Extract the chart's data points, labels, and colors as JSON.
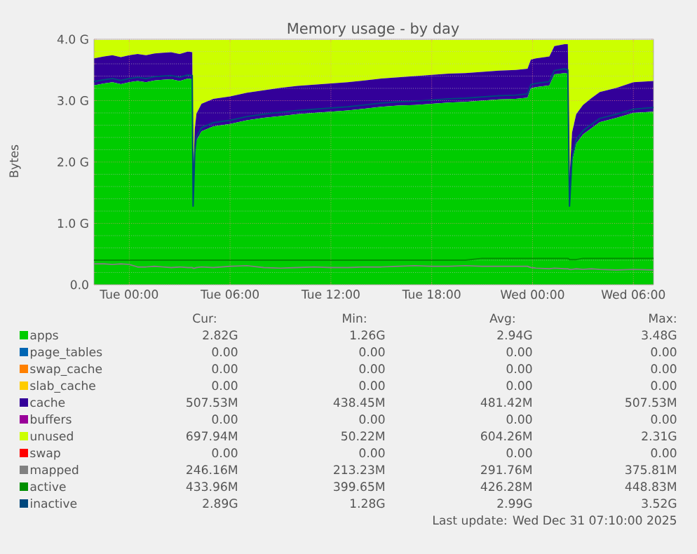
{
  "chart_data": {
    "type": "area",
    "title": "Memory usage - by day",
    "ylabel": "Bytes",
    "stacked": true,
    "grid": true,
    "legend": "bottom",
    "x": [
      "2025-12-29T21:54",
      "2025-12-29T22:30",
      "2025-12-29T23:00",
      "2025-12-29T23:30",
      "2025-12-30T00:00",
      "2025-12-30T00:30",
      "2025-12-30T01:00",
      "2025-12-30T01:30",
      "2025-12-30T02:00",
      "2025-12-30T02:30",
      "2025-12-30T03:00",
      "2025-12-30T03:30",
      "2025-12-30T03:45",
      "2025-12-30T03:48",
      "2025-12-30T03:54",
      "2025-12-30T04:00",
      "2025-12-30T04:18",
      "2025-12-30T05:00",
      "2025-12-30T06:00",
      "2025-12-30T07:00",
      "2025-12-30T08:00",
      "2025-12-30T09:00",
      "2025-12-30T10:00",
      "2025-12-30T11:00",
      "2025-12-30T12:00",
      "2025-12-30T13:00",
      "2025-12-30T14:00",
      "2025-12-30T15:00",
      "2025-12-30T16:00",
      "2025-12-30T17:00",
      "2025-12-30T18:00",
      "2025-12-30T19:00",
      "2025-12-30T20:00",
      "2025-12-30T21:00",
      "2025-12-30T22:00",
      "2025-12-30T23:00",
      "2025-12-30T23:42",
      "2025-12-30T23:54",
      "2025-12-31T00:12",
      "2025-12-31T01:00",
      "2025-12-31T01:18",
      "2025-12-31T01:54",
      "2025-12-31T02:06",
      "2025-12-31T02:12",
      "2025-12-31T02:21",
      "2025-12-31T02:36",
      "2025-12-31T03:00",
      "2025-12-31T03:30",
      "2025-12-31T04:00",
      "2025-12-31T05:00",
      "2025-12-31T06:00",
      "2025-12-31T07:12"
    ],
    "xlim": [
      "2025-12-29T21:54",
      "2025-12-31T07:12"
    ],
    "xticks": [
      {
        "value": "2025-12-30T00:00",
        "label": "Tue 00:00"
      },
      {
        "value": "2025-12-30T06:00",
        "label": "Tue 06:00"
      },
      {
        "value": "2025-12-30T12:00",
        "label": "Tue 12:00"
      },
      {
        "value": "2025-12-30T18:00",
        "label": "Tue 18:00"
      },
      {
        "value": "2025-12-31T00:00",
        "label": "Wed 00:00"
      },
      {
        "value": "2025-12-31T06:00",
        "label": "Wed 06:00"
      }
    ],
    "ylim": [
      0,
      4
    ],
    "yticks": [
      {
        "value": 0,
        "label": "0.0"
      },
      {
        "value": 1,
        "label": "1.0 G"
      },
      {
        "value": 2,
        "label": "2.0 G"
      },
      {
        "value": 3,
        "label": "3.0 G"
      },
      {
        "value": 4,
        "label": "4.0 G"
      }
    ],
    "series": [
      {
        "name": "apps",
        "color": "#00cc00",
        "values": [
          3.25,
          3.28,
          3.3,
          3.27,
          3.3,
          3.32,
          3.3,
          3.33,
          3.34,
          3.35,
          3.32,
          3.36,
          3.35,
          1.26,
          2.1,
          2.35,
          2.5,
          2.58,
          2.62,
          2.68,
          2.72,
          2.75,
          2.78,
          2.8,
          2.82,
          2.84,
          2.87,
          2.9,
          2.92,
          2.93,
          2.95,
          2.97,
          2.98,
          3.0,
          3.02,
          3.03,
          3.05,
          3.2,
          3.22,
          3.25,
          3.43,
          3.45,
          3.44,
          1.26,
          2.0,
          2.3,
          2.45,
          2.55,
          2.65,
          2.72,
          2.8,
          2.82
        ]
      },
      {
        "name": "page_tables",
        "color": "#0066b3",
        "values": [
          null,
          null,
          null,
          null,
          null,
          null,
          null,
          null,
          null,
          null,
          null,
          null,
          null,
          null,
          null,
          null,
          null,
          null,
          null,
          null,
          null,
          null,
          null,
          null,
          null,
          null,
          null,
          null,
          null,
          null,
          null,
          null,
          null,
          null,
          null,
          null,
          null,
          null,
          null,
          null,
          null,
          null,
          null,
          null,
          null,
          null,
          null,
          null,
          null,
          null,
          null,
          null
        ]
      },
      {
        "name": "swap_cache",
        "color": "#ff8000",
        "values": [
          null,
          null,
          null,
          null,
          null,
          null,
          null,
          null,
          null,
          null,
          null,
          null,
          null,
          null,
          null,
          null,
          null,
          null,
          null,
          null,
          null,
          null,
          null,
          null,
          null,
          null,
          null,
          null,
          null,
          null,
          null,
          null,
          null,
          null,
          null,
          null,
          null,
          null,
          null,
          null,
          null,
          null,
          null,
          null,
          null,
          null,
          null,
          null,
          null,
          null,
          null,
          null
        ]
      },
      {
        "name": "slab_cache",
        "color": "#ffcc00",
        "values": [
          null,
          null,
          null,
          null,
          null,
          null,
          null,
          null,
          null,
          null,
          null,
          null,
          null,
          null,
          null,
          null,
          null,
          null,
          null,
          null,
          null,
          null,
          null,
          null,
          null,
          null,
          null,
          null,
          null,
          null,
          null,
          null,
          null,
          null,
          null,
          null,
          null,
          null,
          null,
          null,
          null,
          null,
          null,
          null,
          null,
          null,
          null,
          null,
          null,
          null,
          null,
          null
        ]
      },
      {
        "name": "cache",
        "color": "#330099",
        "values": [
          0.44,
          0.44,
          0.44,
          0.44,
          0.44,
          0.44,
          0.44,
          0.44,
          0.44,
          0.44,
          0.44,
          0.44,
          0.44,
          0.44,
          0.44,
          0.44,
          0.45,
          0.45,
          0.45,
          0.45,
          0.45,
          0.46,
          0.46,
          0.46,
          0.46,
          0.46,
          0.46,
          0.46,
          0.46,
          0.47,
          0.47,
          0.47,
          0.47,
          0.47,
          0.47,
          0.47,
          0.47,
          0.47,
          0.47,
          0.47,
          0.46,
          0.47,
          0.48,
          0.48,
          0.48,
          0.48,
          0.48,
          0.49,
          0.49,
          0.49,
          0.5,
          0.5
        ]
      },
      {
        "name": "buffers",
        "color": "#990099",
        "values": [
          null,
          null,
          null,
          null,
          null,
          null,
          null,
          null,
          null,
          null,
          null,
          null,
          null,
          null,
          null,
          null,
          null,
          null,
          null,
          null,
          null,
          null,
          null,
          null,
          null,
          null,
          null,
          null,
          null,
          null,
          null,
          null,
          null,
          null,
          null,
          null,
          null,
          null,
          null,
          null,
          null,
          null,
          null,
          null,
          null,
          null,
          null,
          null,
          null,
          null,
          null,
          null
        ]
      },
      {
        "name": "unused",
        "color": "#ccff00",
        "values": [
          0.3,
          0.27,
          0.25,
          0.28,
          0.25,
          0.23,
          0.25,
          0.22,
          0.21,
          0.2,
          0.23,
          0.19,
          0.2,
          2.29,
          1.45,
          1.2,
          1.04,
          0.96,
          0.92,
          0.86,
          0.82,
          0.78,
          0.75,
          0.73,
          0.71,
          0.69,
          0.66,
          0.63,
          0.61,
          0.59,
          0.57,
          0.55,
          0.54,
          0.52,
          0.5,
          0.49,
          0.47,
          0.32,
          0.3,
          0.27,
          0.1,
          0.07,
          0.07,
          2.25,
          1.51,
          1.21,
          1.06,
          0.95,
          0.85,
          0.78,
          0.69,
          0.67
        ]
      },
      {
        "name": "swap",
        "color": "#ff0000",
        "values": [
          null,
          null,
          null,
          null,
          null,
          null,
          null,
          null,
          null,
          null,
          null,
          null,
          null,
          null,
          null,
          null,
          null,
          null,
          null,
          null,
          null,
          null,
          null,
          null,
          null,
          null,
          null,
          null,
          null,
          null,
          null,
          null,
          null,
          null,
          null,
          null,
          null,
          null,
          null,
          null,
          null,
          null,
          null,
          null,
          null,
          null,
          null,
          null,
          null,
          null,
          null,
          null
        ]
      },
      {
        "name": "mapped",
        "type": "line",
        "color": "#808080",
        "values": [
          0.34,
          0.34,
          0.33,
          0.34,
          0.33,
          0.29,
          0.29,
          0.3,
          0.29,
          0.28,
          0.29,
          0.28,
          0.28,
          0.27,
          0.27,
          0.28,
          0.29,
          0.28,
          0.3,
          0.31,
          0.28,
          0.27,
          0.28,
          0.29,
          0.28,
          0.28,
          0.29,
          0.29,
          0.3,
          0.31,
          0.3,
          0.3,
          0.31,
          0.3,
          0.3,
          0.3,
          0.3,
          0.28,
          0.27,
          0.26,
          0.27,
          0.26,
          0.26,
          0.25,
          0.25,
          0.26,
          0.25,
          0.26,
          0.25,
          0.24,
          0.25,
          0.24
        ]
      },
      {
        "name": "active",
        "type": "line",
        "color": "#008f00",
        "values": [
          0.4,
          0.4,
          0.4,
          0.4,
          0.4,
          0.4,
          0.4,
          0.4,
          0.4,
          0.4,
          0.4,
          0.4,
          0.4,
          0.4,
          0.4,
          0.4,
          0.4,
          0.4,
          0.4,
          0.4,
          0.4,
          0.4,
          0.4,
          0.4,
          0.4,
          0.4,
          0.4,
          0.4,
          0.4,
          0.4,
          0.4,
          0.4,
          0.4,
          0.43,
          0.43,
          0.43,
          0.43,
          0.43,
          0.43,
          0.43,
          0.43,
          0.43,
          0.43,
          0.41,
          0.41,
          0.41,
          0.43,
          0.43,
          0.43,
          0.43,
          0.43,
          0.43
        ]
      },
      {
        "name": "inactive",
        "type": "line",
        "color": "#00487d",
        "values": [
          3.31,
          3.34,
          3.36,
          3.33,
          3.36,
          3.38,
          3.36,
          3.39,
          3.4,
          3.41,
          3.38,
          3.42,
          3.41,
          1.28,
          2.16,
          2.41,
          2.56,
          2.64,
          2.68,
          2.74,
          2.78,
          2.81,
          2.84,
          2.86,
          2.88,
          2.9,
          2.93,
          2.96,
          2.98,
          2.99,
          3.01,
          3.03,
          3.04,
          3.06,
          3.08,
          3.09,
          3.11,
          3.26,
          3.28,
          3.31,
          3.49,
          3.52,
          3.5,
          1.28,
          2.06,
          2.36,
          2.51,
          2.61,
          2.71,
          2.78,
          2.86,
          2.89
        ]
      }
    ],
    "annotations": [
      "Cur:",
      "Min:",
      "Avg:",
      "Max:",
      "2.82G",
      "1.26G",
      "2.94G",
      "3.48G",
      "0.00",
      "0.00",
      "0.00",
      "0.00",
      "0.00",
      "0.00",
      "0.00",
      "0.00",
      "0.00",
      "0.00",
      "0.00",
      "0.00",
      "507.53M",
      "438.45M",
      "481.42M",
      "507.53M",
      "0.00",
      "0.00",
      "0.00",
      "0.00",
      "697.94M",
      "50.22M",
      "604.26M",
      "2.31G",
      "0.00",
      "0.00",
      "0.00",
      "0.00",
      "246.16M",
      "213.23M",
      "291.76M",
      "375.81M",
      "433.96M",
      "399.65M",
      "426.28M",
      "448.83M",
      "2.89G",
      "1.28G",
      "2.99G",
      "3.52G",
      "Last update: Wed Dec 31 07:10:00 2025"
    ]
  }
}
